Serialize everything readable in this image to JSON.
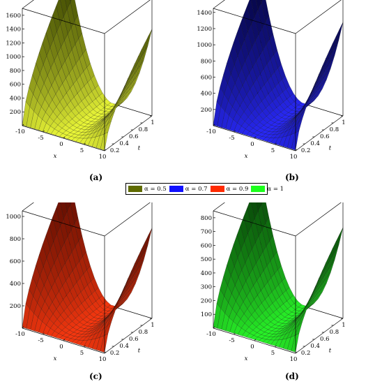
{
  "legend": [
    {
      "label": "α = 0.5",
      "color": "#5f6b00"
    },
    {
      "label": "α = 0.7",
      "color": "#1010ff"
    },
    {
      "label": "α = 0.9",
      "color": "#ff2a00"
    },
    {
      "label": "α = 1",
      "color": "#1cff1c"
    }
  ],
  "chart_data": [
    {
      "type": "surface3d",
      "caption": "(a)",
      "alpha": 0.5,
      "xlabel": "x",
      "tlabel": "t",
      "x_range": [
        -10,
        10
      ],
      "t_range": [
        0,
        1
      ],
      "x_ticks": [
        "-10",
        "-5",
        "0",
        "5",
        "10"
      ],
      "t_ticks": [
        "0.2",
        "0.4",
        "0.6",
        "0.8",
        "1"
      ],
      "z_ticks": [
        "200",
        "400",
        "600",
        "800",
        "1000",
        "1200",
        "1400",
        "1600"
      ],
      "z_max": 1700,
      "z_at_x_min_t_max": 1700,
      "z_at_x_max_t_max": 1250,
      "color_high": "#3a4400",
      "color_low": "#f2ff3a"
    },
    {
      "type": "surface3d",
      "caption": "(b)",
      "alpha": 0.7,
      "xlabel": "x",
      "tlabel": "t",
      "x_range": [
        -10,
        10
      ],
      "t_range": [
        0,
        1
      ],
      "x_ticks": [
        "-10",
        "-5",
        "0",
        "5",
        "10"
      ],
      "t_ticks": [
        "0.2",
        "0.4",
        "0.6",
        "0.8",
        "1"
      ],
      "z_ticks": [
        "200",
        "400",
        "600",
        "800",
        "1000",
        "1200",
        "1400"
      ],
      "z_max": 1450,
      "z_at_x_min_t_max": 1450,
      "z_at_x_max_t_max": 1150,
      "color_high": "#04043a",
      "color_low": "#2a2aff"
    },
    {
      "type": "surface3d",
      "caption": "(c)",
      "alpha": 0.9,
      "xlabel": "x",
      "tlabel": "t",
      "x_range": [
        -10,
        10
      ],
      "t_range": [
        0,
        1
      ],
      "x_ticks": [
        "-10",
        "-5",
        "0",
        "5",
        "10"
      ],
      "t_ticks": [
        "0.2",
        "0.4",
        "0.6",
        "0.8",
        "1"
      ],
      "z_ticks": [
        "200",
        "400",
        "600",
        "800",
        "1000"
      ],
      "z_max": 1050,
      "z_at_x_min_t_max": 1050,
      "z_at_x_max_t_max": 800,
      "color_high": "#5a0c00",
      "color_low": "#ff3a10"
    },
    {
      "type": "surface3d",
      "caption": "(d)",
      "alpha": 1,
      "xlabel": "x",
      "tlabel": "t",
      "x_range": [
        -10,
        10
      ],
      "t_range": [
        0,
        1
      ],
      "x_ticks": [
        "-10",
        "-5",
        "0",
        "5",
        "10"
      ],
      "t_ticks": [
        "0.2",
        "0.4",
        "0.6",
        "0.8",
        "1"
      ],
      "z_ticks": [
        "100",
        "200",
        "300",
        "400",
        "500",
        "600",
        "700",
        "800"
      ],
      "z_max": 850,
      "z_at_x_min_t_max": 850,
      "z_at_x_max_t_max": 650,
      "color_high": "#063a06",
      "color_low": "#2aff2a"
    }
  ]
}
